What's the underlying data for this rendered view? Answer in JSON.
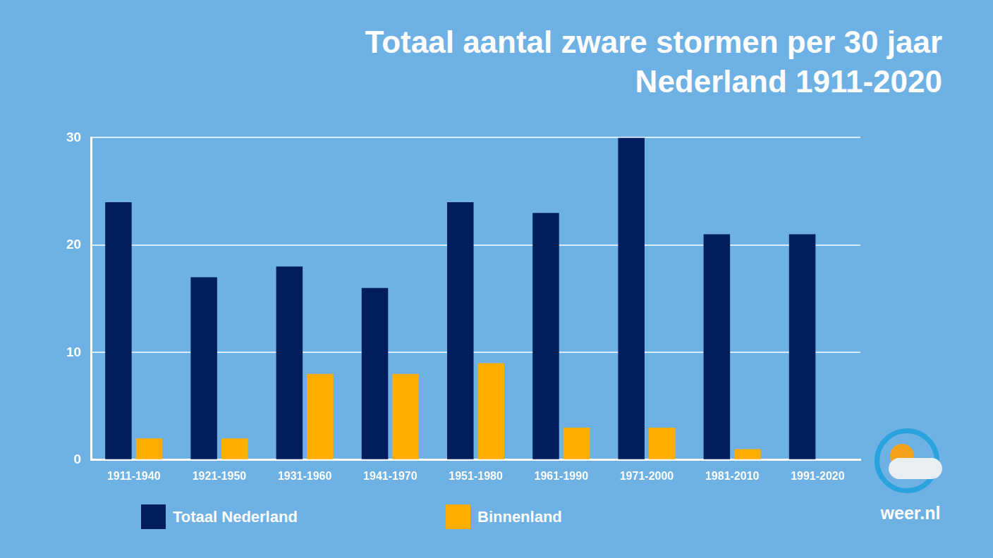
{
  "chart_data": {
    "type": "bar",
    "title": [
      "Totaal aantal zware stormen per 30 jaar",
      "Nederland 1911-2020"
    ],
    "categories": [
      "1911-1940",
      "1921-1950",
      "1931-1960",
      "1941-1970",
      "1951-1980",
      "1961-1990",
      "1971-2000",
      "1981-2010",
      "1991-2020"
    ],
    "series": [
      {
        "name": "Totaal Nederland",
        "color": "#001e5e",
        "values": [
          24,
          17,
          18,
          16,
          24,
          23,
          30,
          21,
          21
        ]
      },
      {
        "name": "Binnenland",
        "color": "#ffae00",
        "values": [
          2,
          2,
          8,
          8,
          9,
          3,
          3,
          1,
          0
        ]
      }
    ],
    "ylim": [
      0,
      30
    ],
    "yticks": [
      0,
      10,
      20,
      30
    ],
    "grid": true,
    "legend": "bottom",
    "data_labels": false,
    "annotations": [
      "weer.nl"
    ]
  }
}
